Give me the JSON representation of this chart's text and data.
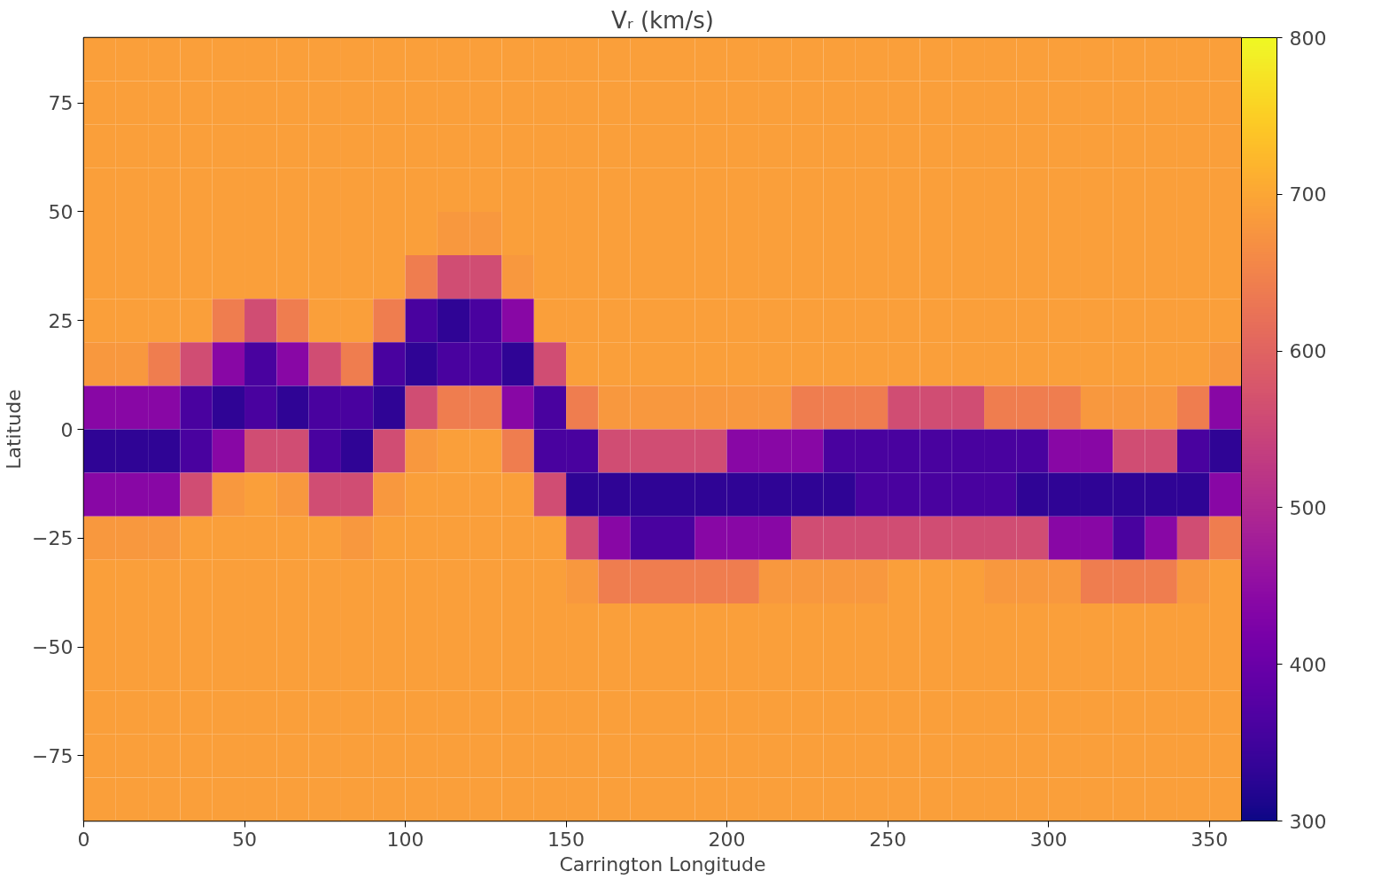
{
  "chart_data": {
    "type": "heatmap",
    "title": "Vᵣ (km/s)",
    "xlabel": "Carrington Longitude",
    "ylabel": "Latitude",
    "x": [
      5,
      15,
      25,
      35,
      45,
      55,
      65,
      75,
      85,
      95,
      105,
      115,
      125,
      135,
      145,
      155,
      165,
      175,
      185,
      195,
      205,
      215,
      225,
      235,
      245,
      255,
      265,
      275,
      285,
      295,
      305,
      315,
      325,
      335,
      345,
      355
    ],
    "y": [
      85,
      75,
      65,
      55,
      45,
      35,
      25,
      15,
      5,
      -5,
      -15,
      -25,
      -35,
      -45,
      -55,
      -65,
      -75,
      -85
    ],
    "xlim": [
      0,
      360
    ],
    "ylim": [
      -90,
      90
    ],
    "xticks": [
      0,
      50,
      100,
      150,
      200,
      250,
      300,
      350
    ],
    "yticks": [
      {
        "value": -75,
        "label": "−75"
      },
      {
        "value": -50,
        "label": "−50"
      },
      {
        "value": -25,
        "label": "−25"
      },
      0,
      25,
      50,
      75
    ],
    "clim": [
      300,
      800
    ],
    "cticks": [
      300,
      400,
      500,
      600,
      700,
      800
    ],
    "cells": [
      [
        690,
        690,
        690,
        690,
        690,
        690,
        690,
        690,
        690,
        690,
        690,
        690,
        690,
        690,
        690,
        690,
        690,
        690,
        690,
        690,
        690,
        690,
        690,
        690,
        690,
        690,
        690,
        690,
        690,
        690,
        690,
        690,
        690,
        690,
        690,
        690
      ],
      [
        690,
        690,
        690,
        690,
        690,
        690,
        690,
        690,
        690,
        690,
        690,
        690,
        690,
        690,
        690,
        690,
        690,
        690,
        690,
        690,
        690,
        690,
        690,
        690,
        690,
        690,
        690,
        690,
        690,
        690,
        690,
        690,
        690,
        690,
        690,
        690
      ],
      [
        690,
        690,
        690,
        690,
        690,
        690,
        690,
        690,
        690,
        690,
        690,
        690,
        690,
        690,
        690,
        690,
        690,
        690,
        690,
        690,
        690,
        690,
        690,
        690,
        690,
        690,
        690,
        690,
        690,
        690,
        690,
        690,
        690,
        690,
        690,
        690
      ],
      [
        690,
        690,
        690,
        690,
        690,
        690,
        690,
        690,
        690,
        690,
        690,
        690,
        690,
        690,
        690,
        690,
        690,
        690,
        690,
        690,
        690,
        690,
        690,
        690,
        690,
        690,
        690,
        690,
        690,
        690,
        690,
        690,
        690,
        690,
        690,
        690
      ],
      [
        690,
        690,
        690,
        690,
        690,
        690,
        690,
        690,
        690,
        690,
        690,
        680,
        680,
        690,
        690,
        690,
        690,
        690,
        690,
        690,
        690,
        690,
        690,
        690,
        690,
        690,
        690,
        690,
        690,
        690,
        690,
        690,
        690,
        690,
        690,
        690
      ],
      [
        690,
        690,
        690,
        690,
        690,
        690,
        690,
        690,
        690,
        690,
        640,
        560,
        560,
        680,
        690,
        690,
        690,
        690,
        690,
        690,
        690,
        690,
        690,
        690,
        690,
        690,
        690,
        690,
        690,
        690,
        690,
        690,
        690,
        690,
        690,
        690
      ],
      [
        690,
        690,
        690,
        690,
        640,
        560,
        640,
        690,
        690,
        640,
        360,
        330,
        360,
        440,
        690,
        690,
        690,
        690,
        690,
        690,
        690,
        690,
        690,
        690,
        690,
        690,
        690,
        690,
        690,
        690,
        690,
        690,
        690,
        690,
        690,
        690
      ],
      [
        680,
        680,
        640,
        560,
        440,
        360,
        440,
        560,
        640,
        360,
        330,
        360,
        360,
        330,
        560,
        690,
        690,
        690,
        690,
        690,
        690,
        690,
        690,
        690,
        690,
        690,
        690,
        690,
        690,
        690,
        690,
        690,
        690,
        690,
        690,
        680
      ],
      [
        440,
        440,
        440,
        360,
        330,
        360,
        330,
        360,
        360,
        330,
        560,
        640,
        640,
        440,
        360,
        640,
        680,
        680,
        680,
        680,
        680,
        680,
        640,
        640,
        640,
        560,
        560,
        560,
        640,
        640,
        640,
        680,
        680,
        680,
        640,
        440
      ],
      [
        330,
        330,
        330,
        360,
        440,
        560,
        560,
        360,
        330,
        560,
        680,
        690,
        690,
        640,
        360,
        360,
        560,
        560,
        560,
        560,
        440,
        440,
        440,
        360,
        360,
        360,
        360,
        360,
        360,
        360,
        440,
        440,
        560,
        560,
        360,
        330
      ],
      [
        440,
        440,
        440,
        560,
        680,
        690,
        680,
        560,
        560,
        680,
        690,
        690,
        690,
        690,
        560,
        330,
        330,
        330,
        330,
        330,
        330,
        330,
        330,
        330,
        360,
        360,
        360,
        360,
        360,
        330,
        330,
        330,
        330,
        330,
        330,
        440
      ],
      [
        680,
        680,
        680,
        690,
        690,
        690,
        690,
        690,
        680,
        690,
        690,
        690,
        690,
        690,
        690,
        560,
        440,
        360,
        360,
        440,
        440,
        440,
        560,
        560,
        560,
        560,
        560,
        560,
        560,
        560,
        440,
        440,
        360,
        440,
        560,
        640
      ],
      [
        690,
        690,
        690,
        690,
        690,
        690,
        690,
        690,
        690,
        690,
        690,
        690,
        690,
        690,
        690,
        680,
        640,
        640,
        640,
        640,
        640,
        680,
        680,
        680,
        680,
        690,
        690,
        690,
        680,
        680,
        680,
        640,
        640,
        640,
        680,
        690
      ],
      [
        690,
        690,
        690,
        690,
        690,
        690,
        690,
        690,
        690,
        690,
        690,
        690,
        690,
        690,
        690,
        690,
        690,
        690,
        690,
        690,
        690,
        690,
        690,
        690,
        690,
        690,
        690,
        690,
        690,
        690,
        690,
        690,
        690,
        690,
        690,
        690
      ],
      [
        690,
        690,
        690,
        690,
        690,
        690,
        690,
        690,
        690,
        690,
        690,
        690,
        690,
        690,
        690,
        690,
        690,
        690,
        690,
        690,
        690,
        690,
        690,
        690,
        690,
        690,
        690,
        690,
        690,
        690,
        690,
        690,
        690,
        690,
        690,
        690
      ],
      [
        690,
        690,
        690,
        690,
        690,
        690,
        690,
        690,
        690,
        690,
        690,
        690,
        690,
        690,
        690,
        690,
        690,
        690,
        690,
        690,
        690,
        690,
        690,
        690,
        690,
        690,
        690,
        690,
        690,
        690,
        690,
        690,
        690,
        690,
        690,
        690
      ],
      [
        690,
        690,
        690,
        690,
        690,
        690,
        690,
        690,
        690,
        690,
        690,
        690,
        690,
        690,
        690,
        690,
        690,
        690,
        690,
        690,
        690,
        690,
        690,
        690,
        690,
        690,
        690,
        690,
        690,
        690,
        690,
        690,
        690,
        690,
        690,
        690
      ],
      [
        690,
        690,
        690,
        690,
        690,
        690,
        690,
        690,
        690,
        690,
        690,
        690,
        690,
        690,
        690,
        690,
        690,
        690,
        690,
        690,
        690,
        690,
        690,
        690,
        690,
        690,
        690,
        690,
        690,
        690,
        690,
        690,
        690,
        690,
        690,
        690
      ]
    ]
  }
}
